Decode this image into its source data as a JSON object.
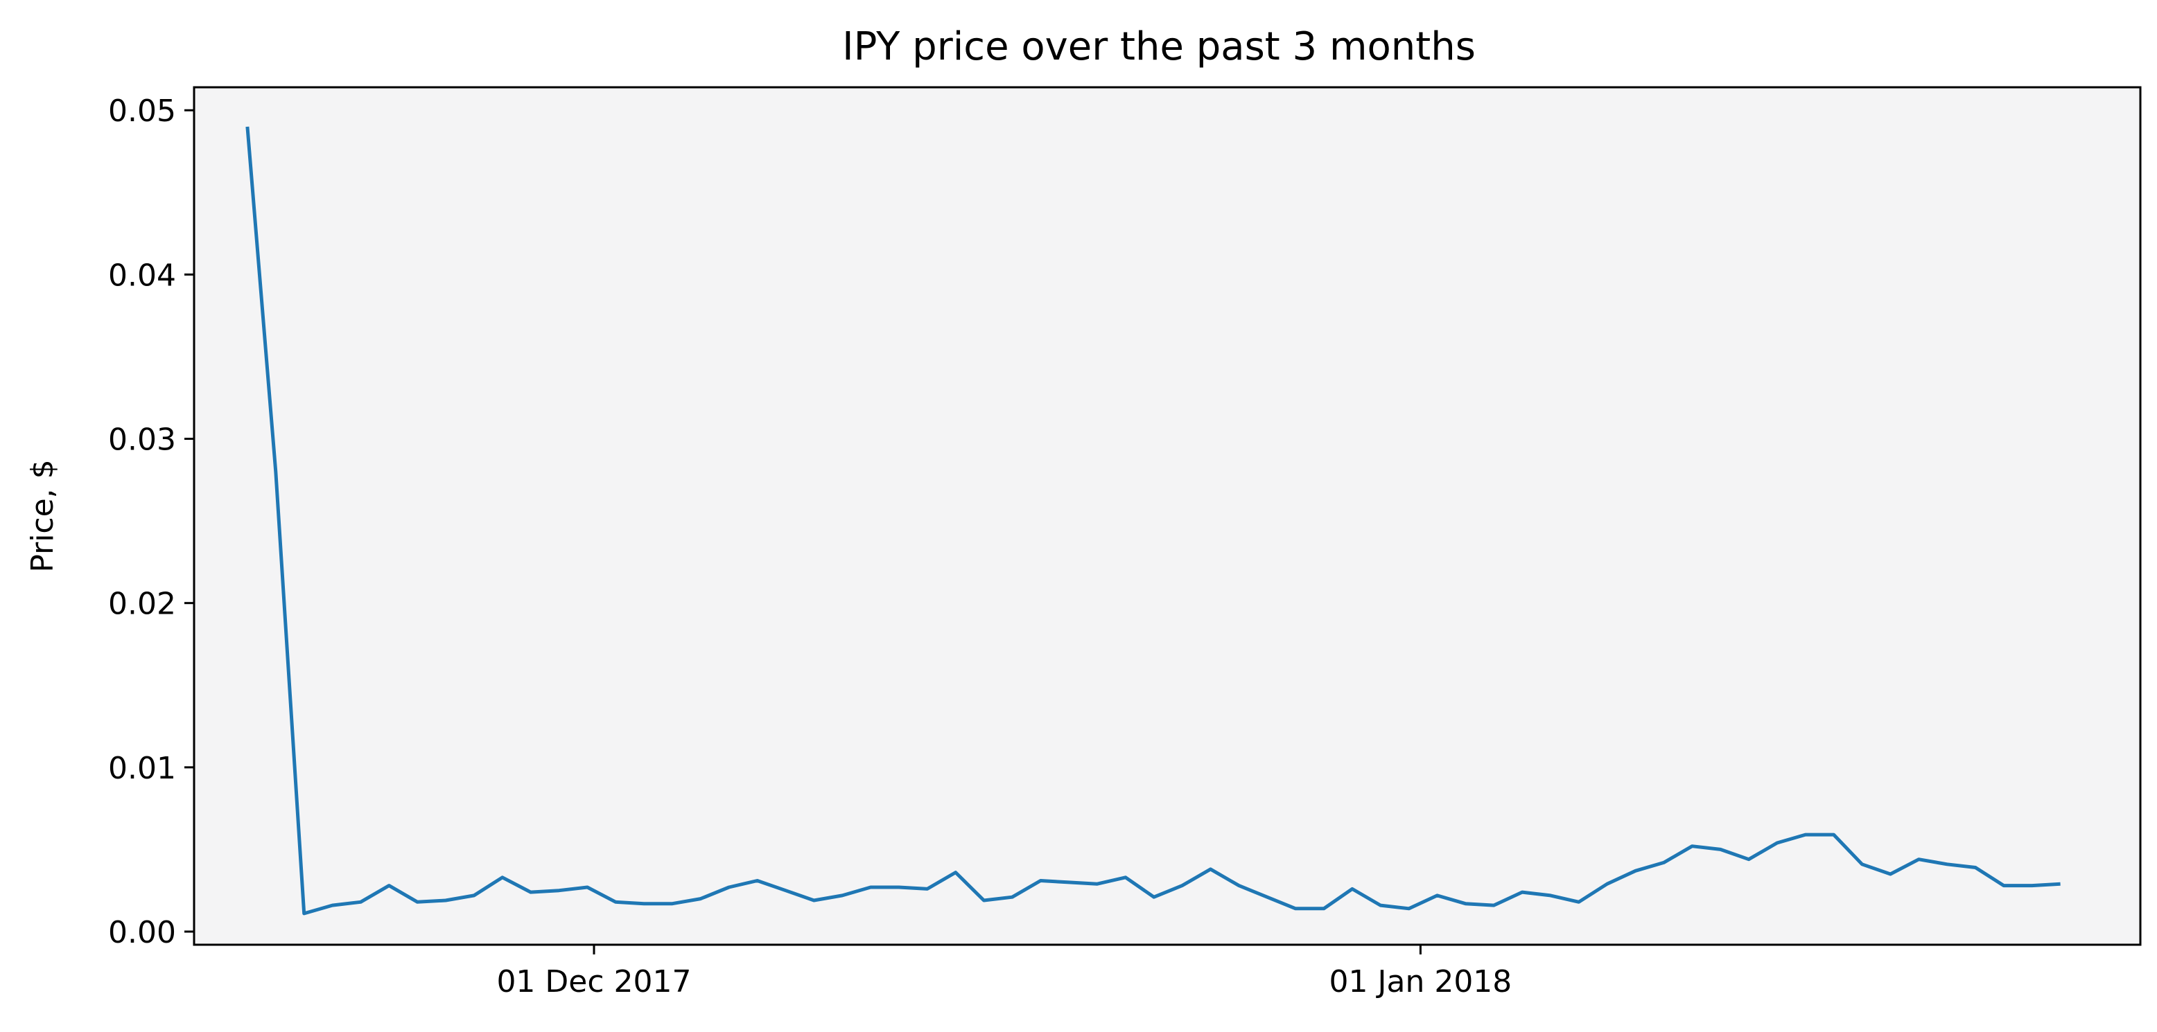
{
  "chart_data": {
    "type": "line",
    "title": "IPY price over the past 3 months",
    "xlabel": "",
    "ylabel": "Price, $",
    "x_start": "2017-11-18",
    "x_end": "2018-01-25",
    "xlim": [
      "2017-11-16",
      "2018-01-28"
    ],
    "ylim": [
      -0.0008,
      0.0514
    ],
    "x_ticks": [
      {
        "date": "2017-12-01",
        "label": "01 Dec 2017"
      },
      {
        "date": "2018-01-01",
        "label": "01 Jan 2018"
      }
    ],
    "y_ticks": [
      {
        "value": 0.0,
        "label": "0.00"
      },
      {
        "value": 0.01,
        "label": "0.01"
      },
      {
        "value": 0.02,
        "label": "0.02"
      },
      {
        "value": 0.03,
        "label": "0.03"
      },
      {
        "value": 0.04,
        "label": "0.04"
      },
      {
        "value": 0.05,
        "label": "0.05"
      }
    ],
    "series": [
      {
        "color": "#1f77b4",
        "values": [
          0.049,
          0.028,
          0.0011,
          0.0016,
          0.0018,
          0.0028,
          0.0018,
          0.0019,
          0.0022,
          0.0033,
          0.0024,
          0.0025,
          0.0027,
          0.0018,
          0.0017,
          0.0017,
          0.002,
          0.0027,
          0.0031,
          0.0025,
          0.0019,
          0.0022,
          0.0027,
          0.0027,
          0.0026,
          0.0036,
          0.0019,
          0.0021,
          0.0031,
          0.003,
          0.0029,
          0.0033,
          0.0021,
          0.0028,
          0.0038,
          0.0028,
          0.0021,
          0.0014,
          0.0014,
          0.0026,
          0.0016,
          0.0014,
          0.0022,
          0.0017,
          0.0016,
          0.0024,
          0.0022,
          0.0018,
          0.0029,
          0.0037,
          0.0042,
          0.0052,
          0.005,
          0.0044,
          0.0054,
          0.0059,
          0.0059,
          0.0041,
          0.0035,
          0.0044,
          0.0041,
          0.0039,
          0.0028,
          0.0028,
          0.0029
        ]
      }
    ],
    "grid": false,
    "plot_background": "#f4f4f5",
    "line_color": "#1f77b4"
  }
}
